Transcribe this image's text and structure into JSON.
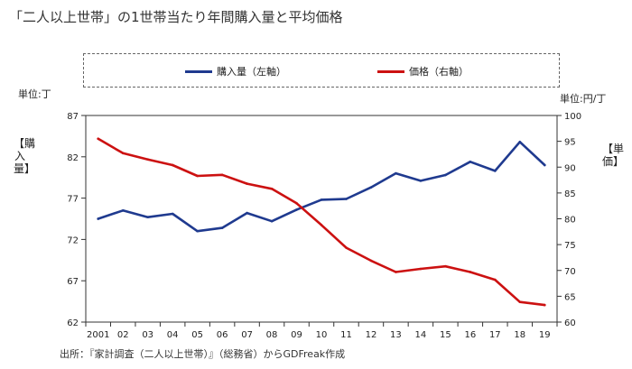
{
  "title": "「二人以上世帯」の1世帯当たり年間購入量と平均価格",
  "legend": {
    "series1_label": "購入量（左軸）",
    "series2_label": "価格（右軸）"
  },
  "unit_left": "単位:丁",
  "unit_right": "単位:円/丁",
  "left_axis_label": "【購入量】",
  "right_axis_label": "【単価】",
  "source": "出所：『家計調査（二人以上世帯）』（総務省）からGDFreak作成",
  "colors": {
    "series1": "#1f3a8f",
    "series2": "#cc1111"
  },
  "chart_data": {
    "type": "line",
    "categories": [
      "2001",
      "02",
      "03",
      "04",
      "05",
      "06",
      "07",
      "08",
      "09",
      "10",
      "11",
      "12",
      "13",
      "14",
      "15",
      "16",
      "17",
      "18",
      "19"
    ],
    "y_left": {
      "ticks": [
        62,
        67,
        72,
        77,
        82,
        87
      ],
      "min": 62,
      "max": 87
    },
    "y_right": {
      "ticks": [
        60,
        65,
        70,
        75,
        80,
        85,
        90,
        95,
        100
      ],
      "min": 60,
      "max": 100
    },
    "grid": false,
    "legend_position": "top",
    "series": [
      {
        "name": "購入量（左軸）",
        "axis": "left",
        "values": [
          74.5,
          75.5,
          74.7,
          75.1,
          73.0,
          73.4,
          75.2,
          74.2,
          75.6,
          76.8,
          76.9,
          78.3,
          80.0,
          79.1,
          79.8,
          81.4,
          80.3,
          83.8,
          81.0
        ]
      },
      {
        "name": "価格（右軸）",
        "axis": "right",
        "values": [
          95.5,
          92.7,
          91.5,
          90.4,
          88.3,
          88.5,
          86.8,
          85.8,
          83.0,
          78.8,
          74.4,
          71.9,
          69.7,
          70.3,
          70.8,
          69.7,
          68.2,
          63.9,
          63.3
        ]
      }
    ]
  }
}
